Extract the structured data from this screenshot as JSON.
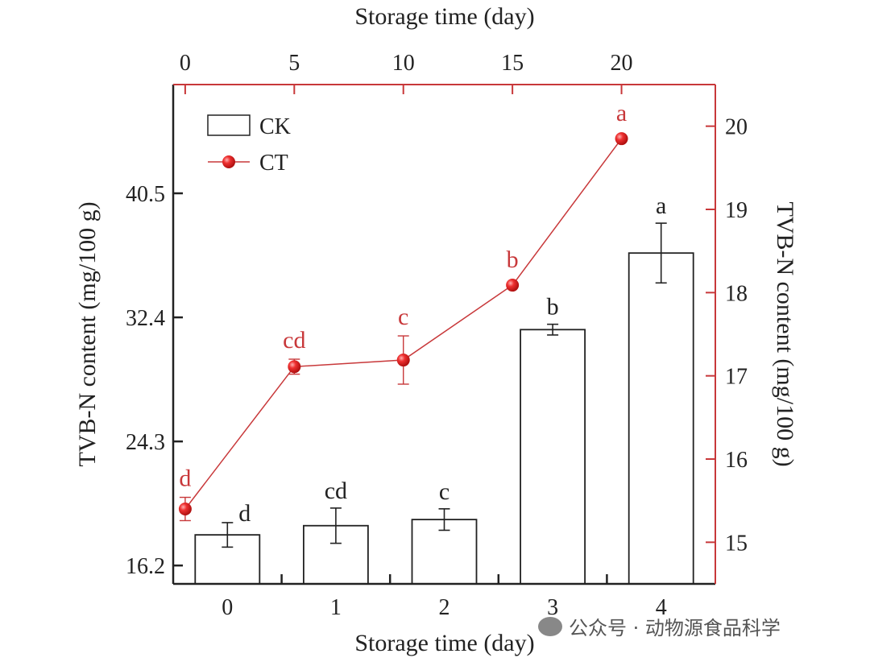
{
  "chart_data": {
    "type": "bar+line",
    "top_xlabel": "Storage time (day)",
    "bottom_xlabel": "Storage time (day)",
    "left_ylabel": "TVB-N content (mg/100 g)",
    "right_ylabel": "TVB-N content (mg/100 g)",
    "categories": [
      "0",
      "1",
      "2",
      "3",
      "4"
    ],
    "left_yticks": [
      "16.2",
      "24.3",
      "32.4",
      "40.5"
    ],
    "left_ylim": [
      15.0,
      47.6
    ],
    "right_yticks": [
      "15",
      "16",
      "17",
      "18",
      "19",
      "20"
    ],
    "right_ylim": [
      14.5,
      20.5
    ],
    "top_xticks": [
      "0",
      "5",
      "10",
      "15",
      "20"
    ],
    "top_xlim": [
      -0.55,
      24.3
    ],
    "legend_placement": "top-left",
    "colors": {
      "CK": "#222222",
      "CT": "#e0262a",
      "right_axis": "#c8383a"
    },
    "series": [
      {
        "name": "CK",
        "type": "bar",
        "axis": "left",
        "x_axis": "bottom",
        "values": [
          18.2,
          18.8,
          19.2,
          31.6,
          36.6
        ],
        "errors": [
          0.8,
          1.15,
          0.7,
          0.35,
          1.95
        ],
        "labels": [
          "d",
          "cd",
          "c",
          "b",
          "a"
        ]
      },
      {
        "name": "CT",
        "type": "line",
        "axis": "right",
        "x_axis": "top",
        "x": [
          0,
          5,
          10,
          15,
          20
        ],
        "values": [
          15.4,
          17.11,
          17.19,
          18.09,
          19.85
        ],
        "errors": [
          0.14,
          0.09,
          0.29,
          0.02,
          0.02
        ],
        "labels": [
          "d",
          "cd",
          "c",
          "b",
          "a"
        ]
      }
    ]
  },
  "watermark": "公众号 · 动物源食品科学"
}
